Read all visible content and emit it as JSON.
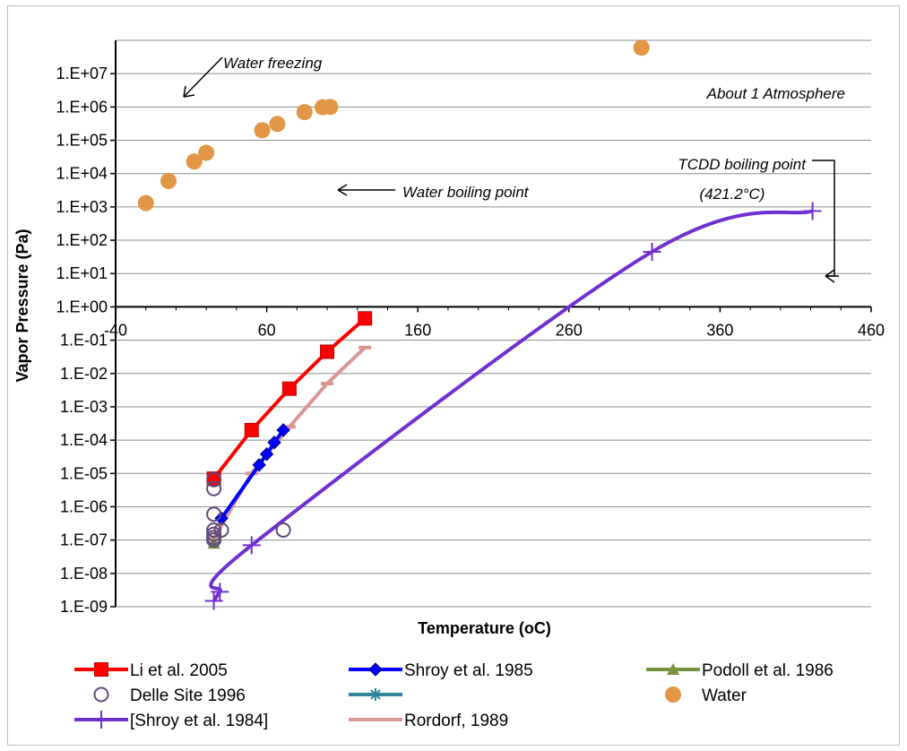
{
  "chart_data": {
    "type": "scatter",
    "xlabel": "Temperature (oC)",
    "ylabel": "Vapor Pressure (Pa)",
    "xlim": [
      -40,
      460
    ],
    "ylim_log10": [
      -9,
      8
    ],
    "x_ticks": [
      -40,
      60,
      160,
      260,
      360,
      460
    ],
    "x_tick_labels": [
      "-40",
      "60",
      "160",
      "260",
      "360",
      "460"
    ],
    "y_tick_labels": [
      "1.E-09",
      "1.E-08",
      "1.E-07",
      "1.E-06",
      "1.E-05",
      "1.E-04",
      "1.E-03",
      "1.E-02",
      "1.E-01",
      "1.E+00",
      "1.E+01",
      "1.E+02",
      "1.E+03",
      "1.E+04",
      "1.E+05",
      "1.E+06",
      "1.E+07"
    ],
    "x_axis_crosses_at_y": 1,
    "grid": "horizontal",
    "legend_position": "bottom",
    "series": [
      {
        "name": "Li et al. 2005",
        "color": "#ff0000",
        "marker": "square",
        "line": true,
        "x": [
          25,
          50,
          75,
          100,
          125
        ],
        "y": [
          7e-06,
          0.0002,
          0.0035,
          0.045,
          0.45
        ]
      },
      {
        "name": "Shroy et al. 1985",
        "color": "#0000ff",
        "marker": "diamond",
        "line": true,
        "x": [
          30,
          55,
          60,
          65,
          71
        ],
        "y": [
          4.5e-07,
          1.8e-05,
          3.8e-05,
          8.5e-05,
          0.0002
        ]
      },
      {
        "name": "Podoll et al. 1986",
        "color": "#77933c",
        "marker": "triangle",
        "line": true,
        "x": [
          25
        ],
        "y": [
          8e-08
        ]
      },
      {
        "name": "Delle Site 1996",
        "color": "#604a7b",
        "marker": "circle-open",
        "line": false,
        "x": [
          25,
          25,
          25,
          25,
          25,
          25,
          25,
          30,
          71
        ],
        "y": [
          6.5e-06,
          3.5e-06,
          6e-07,
          2e-07,
          1.5e-07,
          1.2e-07,
          1e-07,
          2e-07,
          2e-07
        ]
      },
      {
        "name": "",
        "color": "#31859c",
        "marker": "star",
        "line": true,
        "x": [],
        "y": []
      },
      {
        "name": "Water",
        "color": "#e39645",
        "marker": "circle-filled",
        "line": false,
        "x": [
          -20,
          -5,
          12,
          20,
          57,
          67,
          85,
          97,
          102,
          308
        ],
        "y": [
          1300,
          6000,
          23000,
          42000,
          200000,
          310000,
          700000,
          980000,
          1000000,
          60000000
        ]
      },
      {
        "name": "[Shroy et al. 1984]",
        "color": "#7030d0",
        "marker": "plus",
        "line": true,
        "x": [
          25,
          29,
          50,
          315,
          421.2
        ],
        "y": [
          1.5e-09,
          2.8e-09,
          7e-08,
          45,
          750
        ]
      },
      {
        "name": "Rordorf, 1989",
        "color": "#d99694",
        "marker": "dash",
        "line": true,
        "x": [
          25,
          50,
          75,
          100,
          125
        ],
        "y": [
          1.1e-07,
          1e-05,
          0.00025,
          0.005,
          0.06
        ]
      }
    ],
    "annotations": [
      {
        "text": "Water freezing"
      },
      {
        "text": "About 1 Atmosphere"
      },
      {
        "text": "Water boiling point"
      },
      {
        "text": "TCDD boiling point"
      },
      {
        "text": "(421.2°C)"
      }
    ]
  }
}
